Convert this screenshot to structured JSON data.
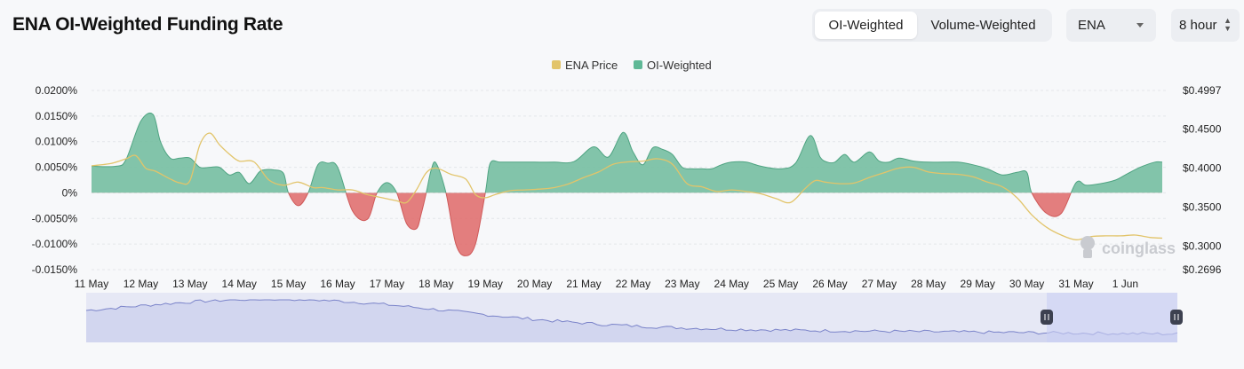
{
  "title": "ENA OI-Weighted Funding Rate",
  "controls": {
    "tabs": [
      {
        "label": "OI-Weighted",
        "active": true
      },
      {
        "label": "Volume-Weighted",
        "active": false
      }
    ],
    "asset": "ENA",
    "interval": "8 hour"
  },
  "watermark": "coinglass",
  "chart_data": {
    "type": "area",
    "legend": [
      {
        "name": "ENA Price",
        "color": "#e2c46a"
      },
      {
        "name": "OI-Weighted",
        "color": "#5fb896"
      }
    ],
    "legend_position": "top-center",
    "grid": true,
    "x_ticks": [
      "11 May",
      "12 May",
      "13 May",
      "14 May",
      "15 May",
      "16 May",
      "17 May",
      "18 May",
      "19 May",
      "20 May",
      "21 May",
      "22 May",
      "23 May",
      "24 May",
      "25 May",
      "26 May",
      "27 May",
      "28 May",
      "29 May",
      "30 May",
      "31 May",
      "1 Jun"
    ],
    "y_left": {
      "ticks": [
        "0.0200%",
        "0.0150%",
        "0.0100%",
        "0.0050%",
        "0%",
        "-0.0050%",
        "-0.0100%",
        "-0.0150%"
      ],
      "range": [
        -0.015,
        0.02
      ],
      "unit": "%"
    },
    "y_right": {
      "ticks": [
        "$0.4997",
        "$0.4500",
        "$0.4000",
        "$0.3500",
        "$0.3000",
        "$0.2696"
      ],
      "range": [
        0.2696,
        0.4997
      ],
      "unit": "USD"
    },
    "positive_color": "#6dbb9b",
    "negative_color": "#e07070",
    "series": [
      {
        "name": "OI-Weighted",
        "axis": "left",
        "x": [
          0,
          0.5,
          0.7,
          1.0,
          1.25,
          1.4,
          1.6,
          1.8,
          2.0,
          2.2,
          2.4,
          2.6,
          2.8,
          3.0,
          3.2,
          3.4,
          3.5,
          3.7,
          3.9,
          4.0,
          4.2,
          4.4,
          4.6,
          4.8,
          5.0,
          5.3,
          5.6,
          5.8,
          6.0,
          6.2,
          6.4,
          6.6,
          6.7,
          6.8,
          6.9,
          7.0,
          7.2,
          7.4,
          7.6,
          7.8,
          8.0,
          8.1,
          8.3,
          8.55,
          8.8,
          9.0,
          9.4,
          9.8,
          10.2,
          10.5,
          10.8,
          11.0,
          11.2,
          11.4,
          11.6,
          11.8,
          12.0,
          12.2,
          12.4,
          12.6,
          12.8,
          13.0,
          13.3,
          13.6,
          14.0,
          14.3,
          14.6,
          14.8,
          14.95,
          15.1,
          15.3,
          15.5,
          15.8,
          16.0,
          16.2,
          16.4,
          16.7,
          17.0,
          17.3,
          17.6,
          17.9,
          18.2,
          18.5,
          18.8,
          19.0,
          19.1,
          19.4,
          19.7,
          20.0,
          20.2,
          20.5,
          20.8,
          21.0,
          21.3,
          21.6,
          21.75
        ],
        "values": [
          0.0052,
          0.0052,
          0.0065,
          0.014,
          0.0153,
          0.01,
          0.0068,
          0.0068,
          0.0068,
          0.005,
          0.005,
          0.005,
          0.0035,
          0.004,
          0.0018,
          0.004,
          0.0045,
          0.0045,
          0.0038,
          0.0,
          -0.0025,
          0.0,
          0.0055,
          0.0058,
          0.005,
          -0.0035,
          -0.0052,
          0.0,
          0.002,
          0.0,
          -0.006,
          -0.007,
          -0.004,
          0.0,
          0.0045,
          0.0058,
          0.0,
          -0.01,
          -0.0123,
          -0.01,
          0.0,
          0.0058,
          0.006,
          0.006,
          0.006,
          0.006,
          0.006,
          0.0061,
          0.009,
          0.007,
          0.0118,
          0.008,
          0.0055,
          0.0088,
          0.0085,
          0.0075,
          0.005,
          0.0047,
          0.0047,
          0.0047,
          0.0055,
          0.006,
          0.006,
          0.0052,
          0.0047,
          0.0058,
          0.0112,
          0.007,
          0.006,
          0.006,
          0.0075,
          0.006,
          0.008,
          0.0062,
          0.006,
          0.0068,
          0.0062,
          0.006,
          0.006,
          0.006,
          0.0055,
          0.0047,
          0.0035,
          0.004,
          0.004,
          0.0,
          -0.004,
          -0.004,
          0.002,
          0.0015,
          0.0018,
          0.0025,
          0.0035,
          0.005,
          0.006,
          0.006
        ]
      },
      {
        "name": "ENA Price",
        "axis": "right",
        "x": [
          0,
          0.4,
          0.7,
          0.9,
          1.1,
          1.3,
          1.6,
          1.8,
          2.0,
          2.2,
          2.4,
          2.6,
          2.8,
          3.0,
          3.3,
          3.6,
          3.9,
          4.2,
          4.5,
          4.7,
          5.0,
          5.3,
          5.6,
          5.9,
          6.2,
          6.4,
          6.6,
          6.8,
          7.0,
          7.3,
          7.6,
          7.8,
          8.0,
          8.2,
          8.5,
          8.8,
          9.1,
          9.4,
          9.7,
          10.0,
          10.3,
          10.6,
          10.9,
          11.2,
          11.5,
          11.8,
          12.1,
          12.4,
          12.7,
          13.0,
          13.3,
          13.6,
          13.9,
          14.2,
          14.5,
          14.7,
          14.9,
          15.2,
          15.5,
          15.8,
          16.1,
          16.4,
          16.7,
          17.0,
          17.3,
          17.6,
          17.9,
          18.2,
          18.5,
          18.8,
          19.1,
          19.4,
          19.7,
          20.0,
          20.3,
          20.6,
          20.9,
          21.2,
          21.5,
          21.75
        ],
        "values": [
          0.403,
          0.406,
          0.412,
          0.416,
          0.4,
          0.396,
          0.386,
          0.381,
          0.384,
          0.43,
          0.445,
          0.43,
          0.418,
          0.409,
          0.408,
          0.385,
          0.378,
          0.382,
          0.375,
          0.375,
          0.372,
          0.372,
          0.366,
          0.362,
          0.358,
          0.356,
          0.372,
          0.394,
          0.4,
          0.392,
          0.386,
          0.366,
          0.362,
          0.366,
          0.371,
          0.372,
          0.373,
          0.375,
          0.38,
          0.388,
          0.395,
          0.405,
          0.408,
          0.409,
          0.412,
          0.405,
          0.38,
          0.376,
          0.37,
          0.372,
          0.37,
          0.367,
          0.361,
          0.356,
          0.374,
          0.384,
          0.382,
          0.38,
          0.381,
          0.388,
          0.394,
          0.4,
          0.401,
          0.395,
          0.393,
          0.392,
          0.389,
          0.382,
          0.376,
          0.362,
          0.34,
          0.324,
          0.314,
          0.308,
          0.312,
          0.313,
          0.313,
          0.314,
          0.311,
          0.31
        ]
      }
    ]
  }
}
